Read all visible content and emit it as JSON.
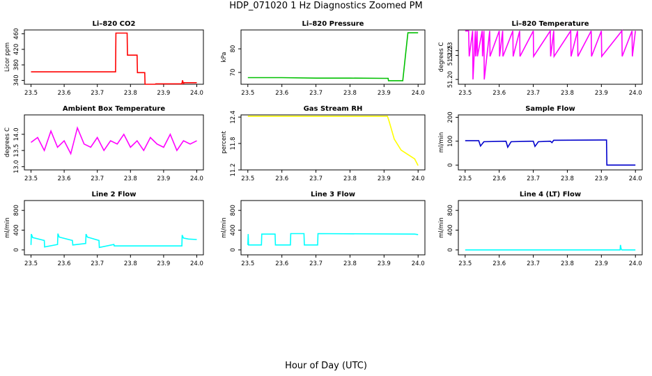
{
  "title": "HDP_071020  1 Hz Diagnostics Zoomed PM",
  "xlabel": "Hour of Day (UTC)",
  "chart_data": [
    {
      "type": "line",
      "title": "Li–820 CO2",
      "ylabel": "Licor ppm",
      "color": "#ff0000",
      "xlim": [
        23.5,
        24.0
      ],
      "xticks": [
        "23.5",
        "23.6",
        "23.7",
        "23.8",
        "23.9",
        "24.0"
      ],
      "ylim": [
        330,
        470
      ],
      "yticks": [
        {
          "v": 340,
          "label": "340"
        },
        {
          "v": 380,
          "label": "380"
        },
        {
          "v": 420,
          "label": "420"
        },
        {
          "v": 460,
          "label": "460"
        }
      ],
      "x": [
        23.5,
        23.755,
        23.756,
        23.79,
        23.791,
        23.82,
        23.821,
        23.843,
        23.844,
        23.875,
        23.876,
        23.955,
        23.957,
        23.96,
        23.962,
        24.0
      ],
      "y": [
        362,
        362,
        462,
        462,
        405,
        405,
        360,
        360,
        330,
        330,
        331,
        331,
        340,
        332,
        334,
        334
      ]
    },
    {
      "type": "line",
      "title": "Li–820 Pressure",
      "ylabel": "kPa",
      "color": "#00c000",
      "xlim": [
        23.5,
        24.0
      ],
      "xticks": [
        "23.5",
        "23.6",
        "23.7",
        "23.8",
        "23.9",
        "24.0"
      ],
      "ylim": [
        65,
        88
      ],
      "yticks": [
        {
          "v": 70,
          "label": "70"
        },
        {
          "v": 80,
          "label": "80"
        }
      ],
      "x": [
        23.5,
        23.6,
        23.7,
        23.8,
        23.9,
        23.912,
        23.913,
        23.955,
        23.965,
        23.97,
        24.0
      ],
      "y": [
        67.8,
        67.8,
        67.6,
        67.6,
        67.5,
        67.5,
        66.5,
        66.5,
        80,
        86.8,
        86.8
      ]
    },
    {
      "type": "line",
      "title": "Li–820 Temperature",
      "ylabel": "degrees C",
      "color": "#ff00ff",
      "xlim": [
        23.5,
        24.0
      ],
      "xticks": [
        "23.5",
        "23.6",
        "23.7",
        "23.8",
        "23.9",
        "24.0"
      ],
      "ylim": [
        51.195,
        51.2515
      ],
      "yticks": [
        {
          "v": 51.2,
          "label": "51.20"
        },
        {
          "v": 51.225,
          "label": "51.225"
        },
        {
          "v": 51.23,
          "label": "51.23"
        }
      ],
      "x": [
        23.5,
        23.51,
        23.512,
        23.522,
        23.523,
        23.53,
        23.531,
        23.535,
        23.536,
        23.55,
        23.551,
        23.555,
        23.556,
        23.572,
        23.573,
        23.6,
        23.601,
        23.61,
        23.611,
        23.64,
        23.641,
        23.66,
        23.661,
        23.7,
        23.701,
        23.75,
        23.751,
        23.76,
        23.761,
        23.81,
        23.811,
        23.83,
        23.831,
        23.87,
        23.871,
        23.9,
        23.901,
        23.96,
        23.961,
        23.99,
        23.991,
        24.0
      ],
      "y": [
        51.2505,
        51.2505,
        51.224,
        51.2505,
        51.2,
        51.2505,
        51.224,
        51.2505,
        51.224,
        51.2505,
        51.224,
        51.2505,
        51.2,
        51.2505,
        51.224,
        51.2505,
        51.224,
        51.2505,
        51.224,
        51.2505,
        51.224,
        51.2505,
        51.224,
        51.2505,
        51.224,
        51.2505,
        51.224,
        51.2505,
        51.224,
        51.2505,
        51.224,
        51.2505,
        51.224,
        51.2505,
        51.224,
        51.2505,
        51.224,
        51.2505,
        51.224,
        51.2505,
        51.224,
        51.2505
      ]
    },
    {
      "type": "line",
      "title": "Ambient Box Temperature",
      "ylabel": "degrees C",
      "color": "#ff00ff",
      "xlim": [
        23.5,
        24.0
      ],
      "xticks": [
        "23.5",
        "23.6",
        "23.7",
        "23.8",
        "23.9",
        "24.0"
      ],
      "ylim": [
        12.9,
        14.6
      ],
      "yticks": [
        {
          "v": 13.0,
          "label": "13.0"
        },
        {
          "v": 13.5,
          "label": "13.5"
        },
        {
          "v": 14.0,
          "label": "14.0"
        }
      ],
      "x": [
        23.5,
        23.52,
        23.54,
        23.56,
        23.58,
        23.6,
        23.62,
        23.64,
        23.66,
        23.68,
        23.7,
        23.72,
        23.74,
        23.76,
        23.78,
        23.8,
        23.82,
        23.84,
        23.86,
        23.88,
        23.9,
        23.92,
        23.94,
        23.96,
        23.98,
        24.0
      ],
      "y": [
        13.75,
        13.9,
        13.5,
        14.1,
        13.6,
        13.8,
        13.4,
        14.2,
        13.7,
        13.6,
        13.9,
        13.5,
        13.8,
        13.7,
        14.0,
        13.6,
        13.8,
        13.5,
        13.9,
        13.7,
        13.6,
        14.0,
        13.5,
        13.8,
        13.7,
        13.8
      ]
    },
    {
      "type": "line",
      "title": "Gas Stream RH",
      "ylabel": "percent",
      "color": "#ffff00",
      "xlim": [
        23.5,
        24.0
      ],
      "xticks": [
        "23.5",
        "23.6",
        "23.7",
        "23.8",
        "23.9",
        "24.0"
      ],
      "ylim": [
        11.2,
        12.45
      ],
      "yticks": [
        {
          "v": 11.2,
          "label": "11.2"
        },
        {
          "v": 11.8,
          "label": "11.8"
        },
        {
          "v": 12.4,
          "label": "12.4"
        }
      ],
      "x": [
        23.5,
        23.6,
        23.7,
        23.8,
        23.91,
        23.915,
        23.93,
        23.95,
        23.97,
        23.99,
        24.0
      ],
      "y": [
        12.42,
        12.42,
        12.42,
        12.42,
        12.42,
        12.3,
        11.9,
        11.65,
        11.55,
        11.45,
        11.3
      ]
    },
    {
      "type": "line",
      "title": "Sample Flow",
      "ylabel": "ml/min",
      "color": "#0000cc",
      "xlim": [
        23.5,
        24.0
      ],
      "xticks": [
        "23.5",
        "23.6",
        "23.7",
        "23.8",
        "23.9",
        "24.0"
      ],
      "ylim": [
        -20,
        210
      ],
      "yticks": [
        {
          "v": 0,
          "label": "0"
        },
        {
          "v": 100,
          "label": "100"
        },
        {
          "v": 200,
          "label": "200"
        }
      ],
      "x": [
        23.5,
        23.54,
        23.545,
        23.555,
        23.62,
        23.625,
        23.635,
        23.7,
        23.705,
        23.715,
        23.75,
        23.755,
        23.76,
        23.9,
        23.915,
        23.916,
        24.0
      ],
      "y": [
        102,
        102,
        80,
        98,
        100,
        75,
        98,
        100,
        78,
        98,
        100,
        94,
        104,
        105,
        105,
        0,
        0
      ]
    },
    {
      "type": "line",
      "title": "Line 2 Flow",
      "ylabel": "ml/min",
      "color": "#00ffff",
      "xlim": [
        23.5,
        24.0
      ],
      "xticks": [
        "23.5",
        "23.6",
        "23.7",
        "23.8",
        "23.9",
        "24.0"
      ],
      "ylim": [
        -100,
        1000
      ],
      "yticks": [
        {
          "v": 0,
          "label": "0"
        },
        {
          "v": 400,
          "label": "400"
        },
        {
          "v": 800,
          "label": "800"
        }
      ],
      "x": [
        23.5,
        23.501,
        23.505,
        23.54,
        23.541,
        23.58,
        23.581,
        23.585,
        23.625,
        23.626,
        23.665,
        23.666,
        23.67,
        23.705,
        23.706,
        23.75,
        23.751,
        23.955,
        23.956,
        23.96,
        23.975,
        24.0
      ],
      "y": [
        100,
        320,
        250,
        190,
        60,
        110,
        330,
        260,
        190,
        100,
        130,
        320,
        260,
        190,
        50,
        110,
        80,
        80,
        300,
        240,
        220,
        210
      ]
    },
    {
      "type": "line",
      "title": "Line 3 Flow",
      "ylabel": "ml/min",
      "color": "#00ffff",
      "xlim": [
        23.5,
        24.0
      ],
      "xticks": [
        "23.5",
        "23.6",
        "23.7",
        "23.8",
        "23.9",
        "24.0"
      ],
      "ylim": [
        -100,
        1000
      ],
      "yticks": [
        {
          "v": 0,
          "label": "0"
        },
        {
          "v": 400,
          "label": "400"
        },
        {
          "v": 800,
          "label": "800"
        }
      ],
      "x": [
        23.5,
        23.501,
        23.502,
        23.54,
        23.541,
        23.58,
        23.581,
        23.625,
        23.626,
        23.665,
        23.666,
        23.705,
        23.706,
        23.99,
        24.0
      ],
      "y": [
        100,
        320,
        100,
        100,
        320,
        320,
        100,
        100,
        330,
        330,
        100,
        100,
        330,
        320,
        310
      ]
    },
    {
      "type": "line",
      "title": "Line 4 (LT) Flow",
      "ylabel": "ml/min",
      "color": "#00ffff",
      "xlim": [
        23.5,
        24.0
      ],
      "xticks": [
        "23.5",
        "23.6",
        "23.7",
        "23.8",
        "23.9",
        "24.0"
      ],
      "ylim": [
        -100,
        1000
      ],
      "yticks": [
        {
          "v": 0,
          "label": "0"
        },
        {
          "v": 400,
          "label": "400"
        },
        {
          "v": 800,
          "label": "800"
        }
      ],
      "x": [
        23.5,
        23.955,
        23.956,
        23.958,
        23.96,
        24.0
      ],
      "y": [
        0,
        0,
        100,
        20,
        0,
        0
      ]
    }
  ]
}
